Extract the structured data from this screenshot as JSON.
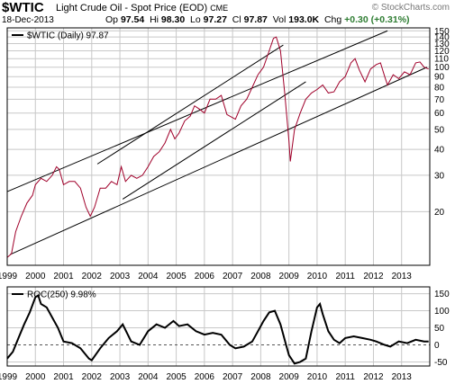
{
  "header": {
    "symbol": "$WTIC",
    "description": "Light Crude Oil - Spot Price (EOD)",
    "exchange": "CME",
    "brand": "© StockCharts.com",
    "date": "18-Dec-2013",
    "stats": {
      "op_label": "Op",
      "op": "97.54",
      "hi_label": "Hi",
      "hi": "98.30",
      "lo_label": "Lo",
      "lo": "97.27",
      "cl_label": "Cl",
      "cl": "97.87",
      "vol_label": "Vol",
      "vol": "193.0K",
      "chg_label": "Chg",
      "chg": "+0.30 (+0.31%)"
    }
  },
  "colors": {
    "price_line": "#a0002a",
    "roc_line": "#000000",
    "grid": "#c8c8c8",
    "trendline": "#000000",
    "frame": "#000000"
  },
  "chart_data": [
    {
      "type": "line",
      "panel": "price",
      "legend": "$WTIC (Daily) 97.87",
      "y_scale": "log",
      "ylim": [
        11,
        155
      ],
      "xlim": [
        1999.0,
        2014.0
      ],
      "y_ticks": [
        20,
        30,
        40,
        50,
        60,
        70,
        80,
        90,
        100,
        110,
        120,
        130,
        140,
        150
      ],
      "x_ticks": [
        "1999",
        "2000",
        "2001",
        "2002",
        "2003",
        "2004",
        "2005",
        "2006",
        "2007",
        "2008",
        "2009",
        "2010",
        "2011",
        "2012",
        "2013"
      ],
      "grid": true,
      "series": [
        {
          "x": [
            1999.0,
            1999.15,
            1999.3,
            1999.5,
            1999.7,
            1999.9,
            2000.0,
            2000.2,
            2000.4,
            2000.6,
            2000.75,
            2000.85,
            2001.0,
            2001.2,
            2001.4,
            2001.6,
            2001.8,
            2001.95,
            2002.1,
            2002.3,
            2002.5,
            2002.7,
            2002.9,
            2003.05,
            2003.2,
            2003.4,
            2003.6,
            2003.8,
            2004.0,
            2004.2,
            2004.4,
            2004.6,
            2004.8,
            2004.95,
            2005.1,
            2005.3,
            2005.5,
            2005.65,
            2005.8,
            2006.0,
            2006.2,
            2006.4,
            2006.6,
            2006.8,
            2007.0,
            2007.1,
            2007.3,
            2007.5,
            2007.7,
            2007.9,
            2008.1,
            2008.3,
            2008.45,
            2008.55,
            2008.7,
            2008.85,
            2009.0,
            2009.05,
            2009.2,
            2009.4,
            2009.6,
            2009.8,
            2010.0,
            2010.2,
            2010.4,
            2010.6,
            2010.8,
            2011.0,
            2011.2,
            2011.35,
            2011.5,
            2011.7,
            2011.9,
            2012.1,
            2012.25,
            2012.4,
            2012.5,
            2012.7,
            2012.9,
            2013.1,
            2013.3,
            2013.5,
            2013.65,
            2013.8,
            2013.96
          ],
          "y": [
            12,
            12.5,
            16,
            19,
            22,
            24,
            27,
            29,
            28,
            30,
            33,
            32,
            27,
            28,
            28,
            26,
            21,
            19,
            21,
            26,
            26,
            28,
            27,
            33,
            28,
            30,
            29,
            30,
            33,
            37,
            39,
            43,
            50,
            45,
            48,
            55,
            58,
            65,
            63,
            60,
            70,
            70,
            73,
            59,
            57,
            56,
            65,
            70,
            80,
            92,
            100,
            120,
            138,
            140,
            120,
            75,
            44,
            35,
            50,
            60,
            70,
            75,
            78,
            82,
            75,
            76,
            85,
            90,
            105,
            110,
            97,
            85,
            98,
            103,
            105,
            90,
            82,
            92,
            88,
            95,
            92,
            105,
            106,
            100,
            98
          ]
        }
      ],
      "trendlines": [
        {
          "x": [
            1999.0,
            2012.5
          ],
          "y": [
            25,
            150
          ]
        },
        {
          "x": [
            1999.1,
            2013.9
          ],
          "y": [
            12.4,
            100
          ]
        },
        {
          "x": [
            2003.1,
            2009.6
          ],
          "y": [
            23,
            85
          ]
        },
        {
          "x": [
            2002.2,
            2008.8
          ],
          "y": [
            34,
            128
          ]
        }
      ]
    },
    {
      "type": "line",
      "panel": "indicator",
      "legend": "ROC(250) 9.98%",
      "ylim": [
        -62,
        170
      ],
      "xlim": [
        1999.0,
        2014.0
      ],
      "y_ticks": [
        -50,
        0,
        50,
        100,
        150
      ],
      "x_ticks": [
        "1999",
        "2000",
        "2001",
        "2002",
        "2003",
        "2004",
        "2005",
        "2006",
        "2007",
        "2008",
        "2009",
        "2010",
        "2011",
        "2012",
        "2013"
      ],
      "reference_line": 0,
      "grid": true,
      "series": [
        {
          "x": [
            1999.0,
            1999.2,
            1999.4,
            1999.6,
            1999.8,
            2000.0,
            2000.1,
            2000.2,
            2000.4,
            2000.6,
            2000.8,
            2001.0,
            2001.3,
            2001.6,
            2001.9,
            2002.0,
            2002.3,
            2002.6,
            2002.9,
            2003.1,
            2003.4,
            2003.7,
            2004.0,
            2004.3,
            2004.6,
            2004.9,
            2005.1,
            2005.4,
            2005.7,
            2006.0,
            2006.3,
            2006.6,
            2006.9,
            2007.1,
            2007.4,
            2007.7,
            2007.9,
            2008.1,
            2008.3,
            2008.5,
            2008.7,
            2008.9,
            2009.0,
            2009.2,
            2009.4,
            2009.6,
            2009.8,
            2010.0,
            2010.1,
            2010.2,
            2010.4,
            2010.6,
            2010.8,
            2011.0,
            2011.3,
            2011.6,
            2011.9,
            2012.1,
            2012.4,
            2012.6,
            2012.9,
            2013.2,
            2013.5,
            2013.8,
            2013.96
          ],
          "y": [
            -40,
            -20,
            20,
            60,
            95,
            140,
            145,
            120,
            110,
            80,
            50,
            10,
            5,
            -10,
            -40,
            -45,
            -10,
            20,
            40,
            60,
            10,
            0,
            40,
            60,
            50,
            70,
            55,
            60,
            40,
            30,
            35,
            30,
            0,
            -10,
            -5,
            10,
            40,
            70,
            95,
            100,
            60,
            0,
            -30,
            -55,
            -50,
            -40,
            40,
            110,
            120,
            90,
            40,
            15,
            5,
            20,
            25,
            20,
            15,
            10,
            0,
            -5,
            10,
            5,
            15,
            10,
            9.98
          ]
        }
      ]
    }
  ]
}
